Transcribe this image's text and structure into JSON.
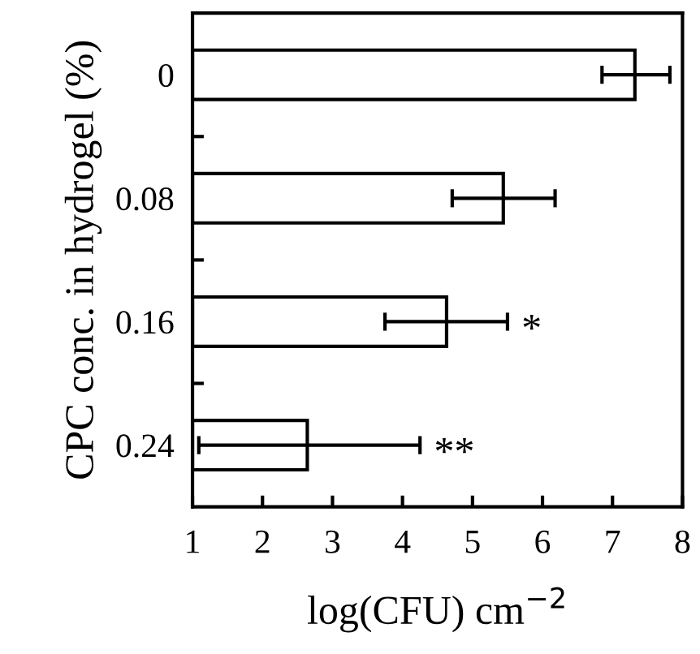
{
  "chart_data": {
    "type": "bar",
    "orientation": "horizontal",
    "xlabel": "log(CFU) cm$^{−2}$",
    "ylabel": "CPC conc. in hydrogel (%)",
    "categories": [
      "0",
      "0.08",
      "0.16",
      "0.24"
    ],
    "values": [
      7.32,
      5.44,
      4.63,
      2.64
    ],
    "errors": [
      [
        6.85,
        7.82
      ],
      [
        4.71,
        6.18
      ],
      [
        3.75,
        5.5
      ],
      [
        1.09,
        4.25
      ]
    ],
    "color": "#ffffff",
    "xlim": [
      1,
      8
    ],
    "xticks": [
      1,
      2,
      3,
      4,
      5,
      6,
      7,
      8
    ],
    "annotations": [
      "*",
      "**"
    ],
    "grid": false,
    "legend": false
  }
}
